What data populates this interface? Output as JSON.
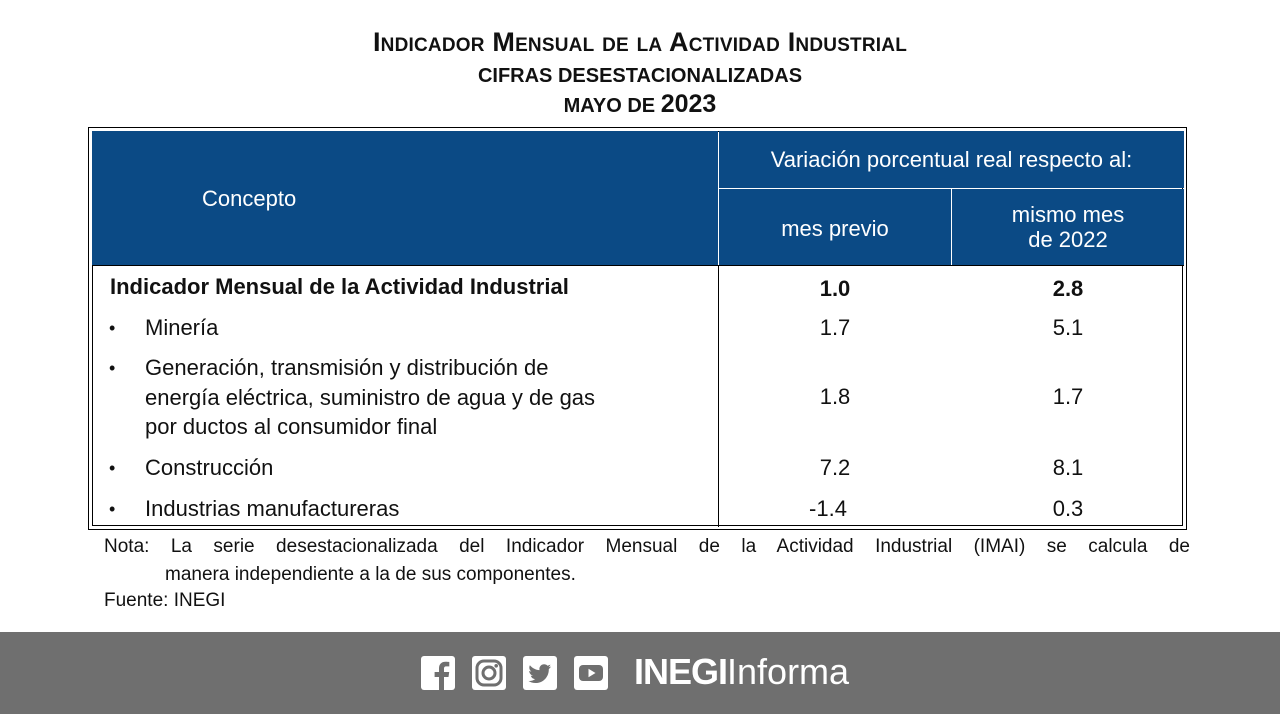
{
  "title": {
    "main": "Indicador Mensual de la Actividad Industrial",
    "subtitle": "CIFRAS DESESTACIONALIZADAS",
    "date_prefix": "MAYO DE",
    "date_year": "2023"
  },
  "table": {
    "header": {
      "concepto": "Concepto",
      "variacion": "Variación porcentual real respecto al:",
      "mes_previo": "mes previo",
      "mismo_mes_line1": "mismo mes",
      "mismo_mes_line2": "de 2022"
    },
    "rows": [
      {
        "concepto": "Indicador Mensual de la Actividad Industrial",
        "mes_previo": "1.0",
        "mismo_mes": "2.8"
      },
      {
        "concepto": "Minería",
        "mes_previo": "1.7",
        "mismo_mes": "5.1"
      },
      {
        "concepto_lines": [
          "Generación, transmisión y distribución de",
          "energía eléctrica, suministro de agua y de gas",
          "por ductos al consumidor final"
        ],
        "mes_previo": "1.8",
        "mismo_mes": "1.7"
      },
      {
        "concepto": "Construcción",
        "mes_previo": "7.2",
        "mismo_mes": "8.1"
      },
      {
        "concepto": "Industrias manufactureras",
        "mes_previo": "-1.4",
        "mismo_mes": "0.3"
      }
    ],
    "bullet": "•"
  },
  "note": {
    "line1": "Nota: La serie desestacionalizada del Indicador Mensual de la Actividad Industrial (IMAI) se calcula de",
    "line2": "manera independiente a la de sus componentes.",
    "source": "Fuente: INEGI"
  },
  "footer": {
    "brand_bold": "INEGI",
    "brand_light": "Informa",
    "icons": [
      "facebook-icon",
      "instagram-icon",
      "twitter-icon",
      "youtube-icon"
    ],
    "background_color": "#6f6f6f"
  },
  "colors": {
    "header_blue": "#0b4a85",
    "header_text": "#ffffff"
  }
}
